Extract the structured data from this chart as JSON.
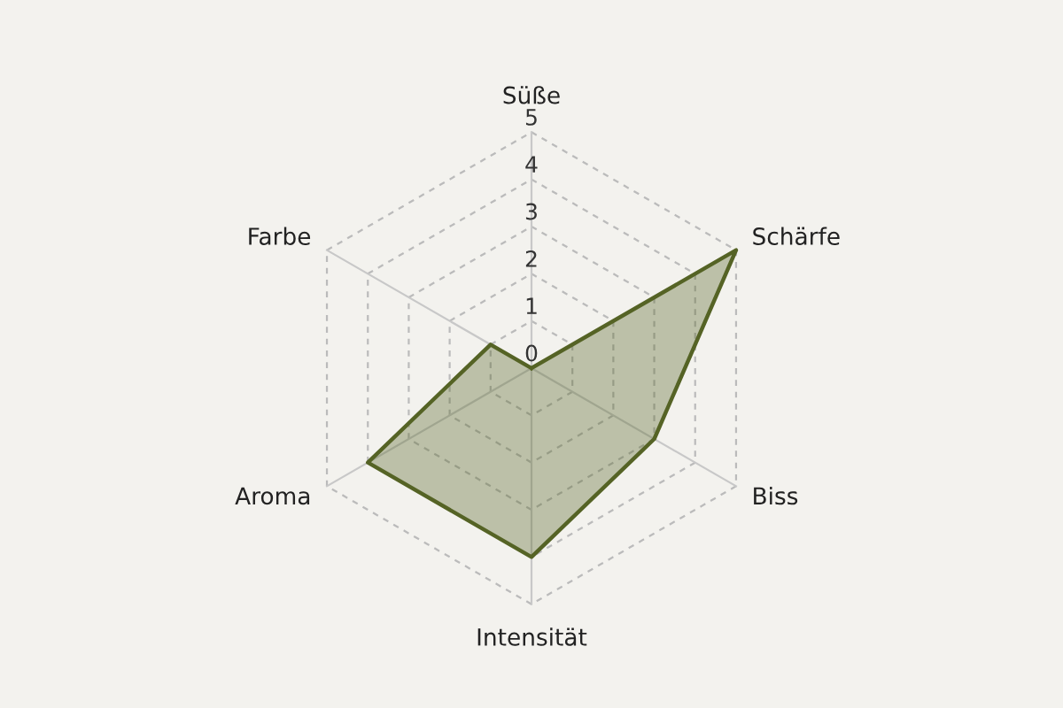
{
  "chart_data": {
    "type": "radar",
    "categories": [
      "Süße",
      "Schärfe",
      "Biss",
      "Intensität",
      "Aroma",
      "Farbe"
    ],
    "series": [
      {
        "color": "#556325",
        "values": [
          0,
          5,
          3,
          4,
          4,
          1
        ]
      }
    ],
    "ylim": [
      0,
      5
    ],
    "yticks": [
      0,
      1,
      2,
      3,
      4,
      5
    ],
    "grid": true
  }
}
